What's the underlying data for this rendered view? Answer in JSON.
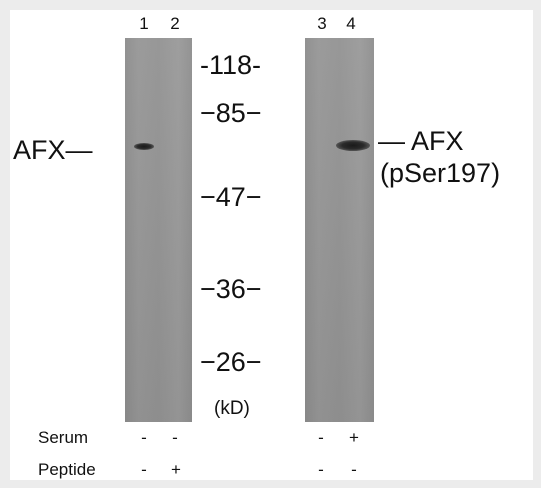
{
  "lanes": [
    "1",
    "2",
    "3",
    "4"
  ],
  "markers": [
    "-118-",
    "−85−",
    "−47−",
    "−36−",
    "−26−"
  ],
  "unit": "(kD)",
  "labels": {
    "left": "AFX—",
    "right": "— AFX",
    "right_sub": "(pSer197)"
  },
  "conditions": {
    "serum": {
      "label": "Serum",
      "values": [
        "-",
        "-",
        "-",
        "+"
      ]
    },
    "peptide": {
      "label": "Peptide",
      "values": [
        "-",
        "+",
        "-",
        "-"
      ]
    }
  },
  "colors": {
    "blot": "#939393",
    "band": "#1a1a1a",
    "background": "#ffffff",
    "border": "#ececec"
  }
}
